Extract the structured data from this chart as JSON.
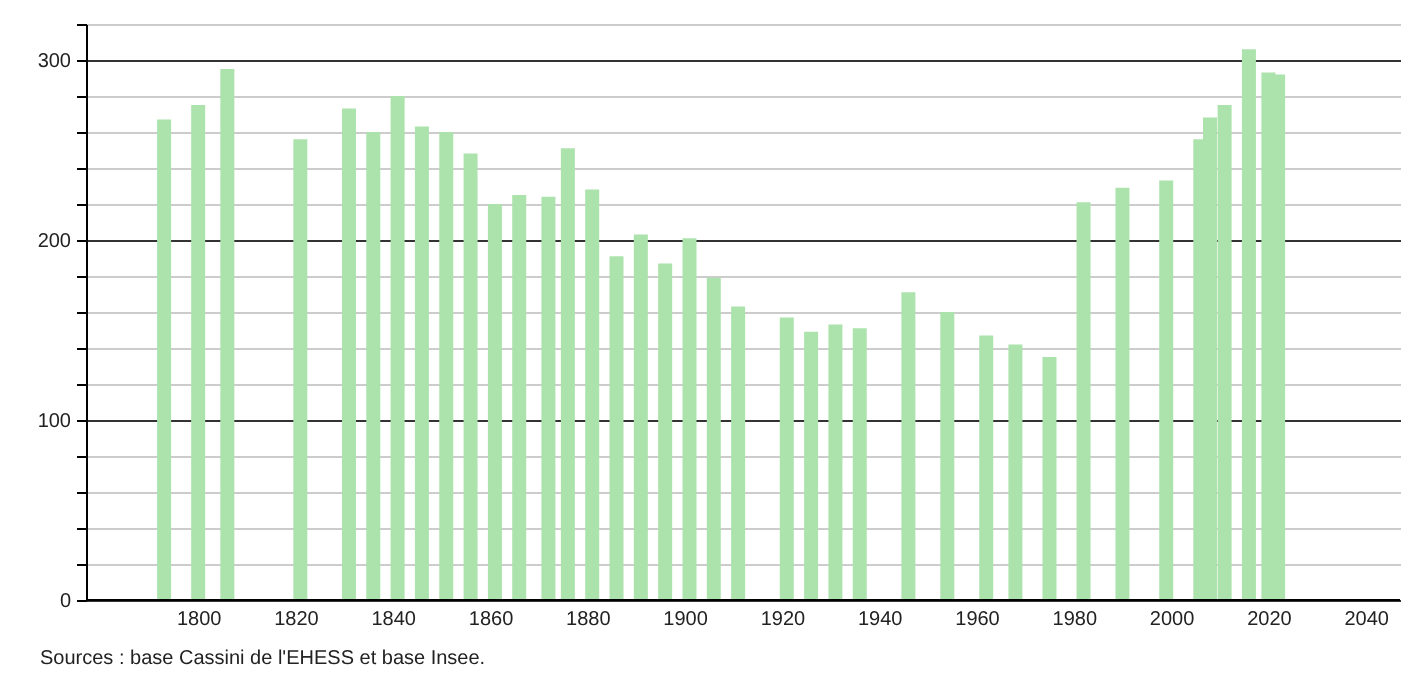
{
  "chart_data": {
    "type": "bar",
    "color": "#ace3ac",
    "x": [
      1793,
      1800,
      1806,
      1821,
      1831,
      1836,
      1841,
      1846,
      1851,
      1856,
      1861,
      1866,
      1872,
      1876,
      1881,
      1886,
      1891,
      1896,
      1901,
      1906,
      1911,
      1921,
      1926,
      1931,
      1936,
      1946,
      1954,
      1962,
      1968,
      1975,
      1982,
      1990,
      1999,
      2006,
      2008,
      2011,
      2016,
      2020,
      2022
    ],
    "values": [
      267,
      275,
      295,
      256,
      273,
      260,
      280,
      263,
      260,
      248,
      220,
      225,
      224,
      251,
      228,
      191,
      203,
      187,
      201,
      179,
      163,
      157,
      149,
      153,
      151,
      171,
      160,
      147,
      142,
      135,
      221,
      229,
      233,
      256,
      268,
      275,
      306,
      293,
      292
    ],
    "xlim": [
      1779,
      2045
    ],
    "xticks": [
      1800,
      1820,
      1840,
      1860,
      1880,
      1900,
      1920,
      1940,
      1960,
      1980,
      2000,
      2020,
      2040
    ],
    "ylim": [
      0,
      320
    ],
    "yticks": [
      0,
      {
        "value": 20,
        "label": null
      },
      {
        "value": 40,
        "label": null
      },
      {
        "value": 60,
        "label": null
      },
      {
        "value": 80,
        "label": null
      },
      100,
      {
        "value": 120,
        "label": null
      },
      {
        "value": 140,
        "label": null
      },
      {
        "value": 160,
        "label": null
      },
      {
        "value": 180,
        "label": null
      },
      200,
      {
        "value": 220,
        "label": null
      },
      {
        "value": 240,
        "label": null
      },
      {
        "value": 260,
        "label": null
      },
      {
        "value": 280,
        "label": null
      },
      300,
      {
        "value": 320,
        "label": null
      }
    ],
    "grid": "y",
    "annotations": [
      "Sources : base Cassini de l'EHESS et base Insee."
    ]
  }
}
